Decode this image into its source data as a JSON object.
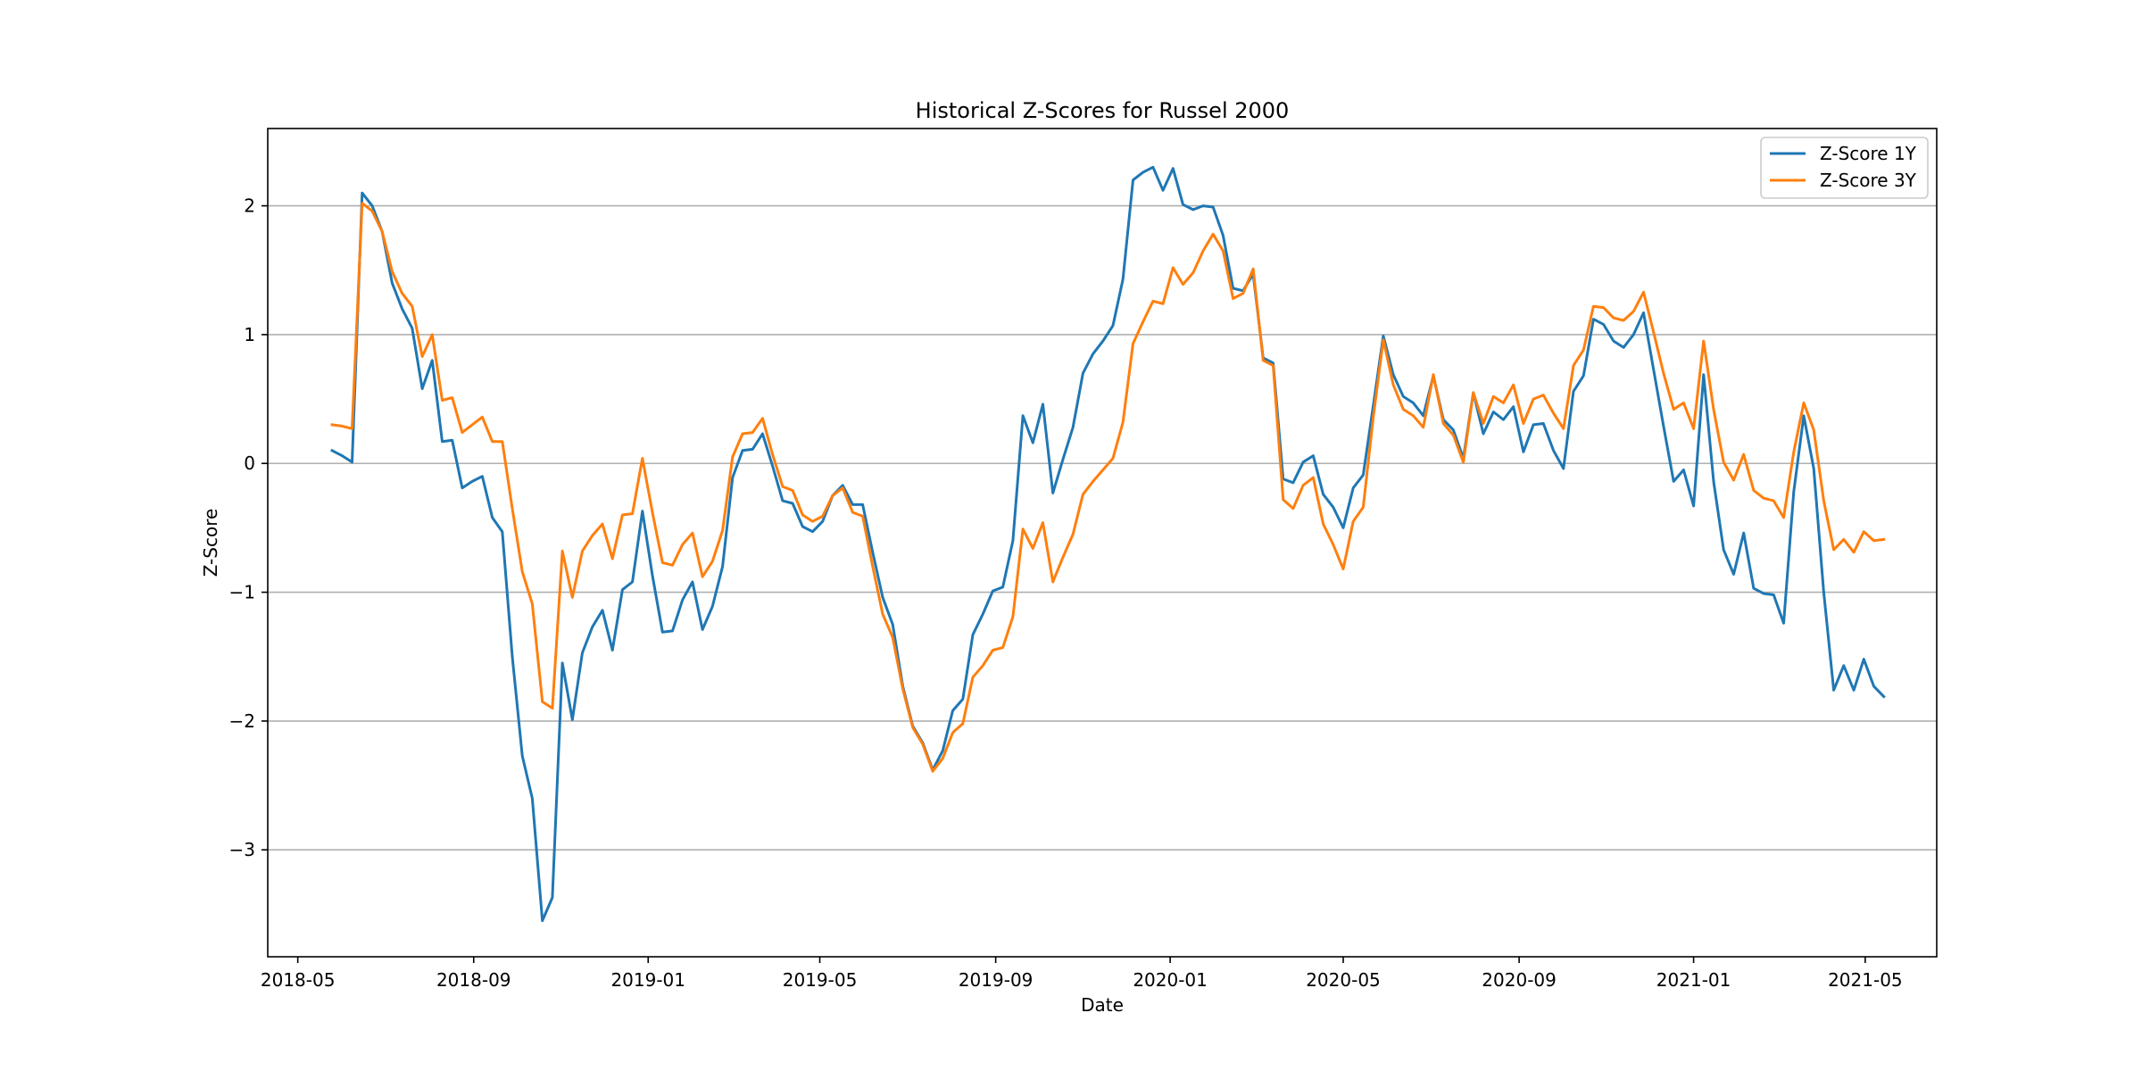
{
  "chart_data": {
    "type": "line",
    "title": "Historical Z-Scores for Russel 2000",
    "xlabel": "Date",
    "ylabel": "Z-Score",
    "x_axis_type": "date",
    "xlim": [
      "2018-04-10",
      "2021-06-20"
    ],
    "ylim": [
      -3.83,
      2.6
    ],
    "grid": "horizontal",
    "legend_position": "top-right",
    "x_ticks": [
      {
        "date": "2018-05-01",
        "label": "2018-05"
      },
      {
        "date": "2018-09-01",
        "label": "2018-09"
      },
      {
        "date": "2019-01-01",
        "label": "2019-01"
      },
      {
        "date": "2019-05-01",
        "label": "2019-05"
      },
      {
        "date": "2019-09-01",
        "label": "2019-09"
      },
      {
        "date": "2020-01-01",
        "label": "2020-01"
      },
      {
        "date": "2020-05-01",
        "label": "2020-05"
      },
      {
        "date": "2020-09-01",
        "label": "2020-09"
      },
      {
        "date": "2021-01-01",
        "label": "2021-01"
      },
      {
        "date": "2021-05-01",
        "label": "2021-05"
      }
    ],
    "y_ticks": [
      {
        "value": -3,
        "label": "−3"
      },
      {
        "value": -2,
        "label": "−2"
      },
      {
        "value": -1,
        "label": "−1"
      },
      {
        "value": 0,
        "label": "0"
      },
      {
        "value": 1,
        "label": "1"
      },
      {
        "value": 2,
        "label": "2"
      }
    ],
    "x": [
      "2018-05-25",
      "2018-06-01",
      "2018-06-08",
      "2018-06-15",
      "2018-06-22",
      "2018-06-29",
      "2018-07-06",
      "2018-07-13",
      "2018-07-20",
      "2018-07-27",
      "2018-08-03",
      "2018-08-10",
      "2018-08-17",
      "2018-08-24",
      "2018-08-31",
      "2018-09-07",
      "2018-09-14",
      "2018-09-21",
      "2018-09-28",
      "2018-10-05",
      "2018-10-12",
      "2018-10-19",
      "2018-10-26",
      "2018-11-02",
      "2018-11-09",
      "2018-11-16",
      "2018-11-23",
      "2018-11-30",
      "2018-12-07",
      "2018-12-14",
      "2018-12-21",
      "2018-12-28",
      "2019-01-04",
      "2019-01-11",
      "2019-01-18",
      "2019-01-25",
      "2019-02-01",
      "2019-02-08",
      "2019-02-15",
      "2019-02-22",
      "2019-03-01",
      "2019-03-08",
      "2019-03-15",
      "2019-03-22",
      "2019-03-29",
      "2019-04-05",
      "2019-04-12",
      "2019-04-19",
      "2019-04-26",
      "2019-05-03",
      "2019-05-10",
      "2019-05-17",
      "2019-05-24",
      "2019-05-31",
      "2019-06-07",
      "2019-06-14",
      "2019-06-21",
      "2019-06-28",
      "2019-07-05",
      "2019-07-12",
      "2019-07-19",
      "2019-07-26",
      "2019-08-02",
      "2019-08-09",
      "2019-08-16",
      "2019-08-23",
      "2019-08-30",
      "2019-09-06",
      "2019-09-13",
      "2019-09-20",
      "2019-09-27",
      "2019-10-04",
      "2019-10-11",
      "2019-10-18",
      "2019-10-25",
      "2019-11-01",
      "2019-11-08",
      "2019-11-15",
      "2019-11-22",
      "2019-11-29",
      "2019-12-06",
      "2019-12-13",
      "2019-12-20",
      "2019-12-27",
      "2020-01-03",
      "2020-01-10",
      "2020-01-17",
      "2020-01-24",
      "2020-01-31",
      "2020-02-07",
      "2020-02-14",
      "2020-02-21",
      "2020-02-28",
      "2020-03-06",
      "2020-03-13",
      "2020-03-20",
      "2020-03-27",
      "2020-04-03",
      "2020-04-10",
      "2020-04-17",
      "2020-04-24",
      "2020-05-01",
      "2020-05-08",
      "2020-05-15",
      "2020-05-22",
      "2020-05-29",
      "2020-06-05",
      "2020-06-12",
      "2020-06-19",
      "2020-06-26",
      "2020-07-03",
      "2020-07-10",
      "2020-07-17",
      "2020-07-24",
      "2020-07-31",
      "2020-08-07",
      "2020-08-14",
      "2020-08-21",
      "2020-08-28",
      "2020-09-04",
      "2020-09-11",
      "2020-09-18",
      "2020-09-25",
      "2020-10-02",
      "2020-10-09",
      "2020-10-16",
      "2020-10-23",
      "2020-10-30",
      "2020-11-06",
      "2020-11-13",
      "2020-11-20",
      "2020-11-27",
      "2020-12-04",
      "2020-12-11",
      "2020-12-18",
      "2020-12-25",
      "2021-01-01",
      "2021-01-08",
      "2021-01-15",
      "2021-01-22",
      "2021-01-29",
      "2021-02-05",
      "2021-02-12",
      "2021-02-19",
      "2021-02-26",
      "2021-03-05",
      "2021-03-12",
      "2021-03-19",
      "2021-03-26",
      "2021-04-02",
      "2021-04-09",
      "2021-04-16",
      "2021-04-23",
      "2021-04-30",
      "2021-05-07",
      "2021-05-14"
    ],
    "series": [
      {
        "name": "Z-Score 1Y",
        "color": "#1f77b4",
        "values": [
          0.1,
          0.06,
          0.01,
          2.1,
          2.0,
          1.8,
          1.4,
          1.2,
          1.05,
          0.58,
          0.8,
          0.17,
          0.18,
          -0.19,
          -0.14,
          -0.1,
          -0.42,
          -0.53,
          -1.5,
          -2.27,
          -2.6,
          -3.55,
          -3.37,
          -1.55,
          -1.99,
          -1.47,
          -1.27,
          -1.14,
          -1.45,
          -0.98,
          -0.92,
          -0.37,
          -0.87,
          -1.31,
          -1.3,
          -1.06,
          -0.92,
          -1.29,
          -1.11,
          -0.8,
          -0.11,
          0.1,
          0.11,
          0.23,
          -0.02,
          -0.29,
          -0.31,
          -0.49,
          -0.53,
          -0.45,
          -0.25,
          -0.17,
          -0.32,
          -0.32,
          -0.69,
          -1.04,
          -1.25,
          -1.73,
          -2.04,
          -2.17,
          -2.38,
          -2.23,
          -1.92,
          -1.83,
          -1.33,
          -1.17,
          -0.99,
          -0.96,
          -0.6,
          0.37,
          0.16,
          0.46,
          -0.23,
          0.03,
          0.28,
          0.7,
          0.85,
          0.95,
          1.07,
          1.43,
          2.2,
          2.26,
          2.3,
          2.12,
          2.29,
          2.01,
          1.97,
          2.0,
          1.99,
          1.77,
          1.36,
          1.34,
          1.47,
          0.82,
          0.78,
          -0.12,
          -0.15,
          0.01,
          0.06,
          -0.24,
          -0.34,
          -0.5,
          -0.19,
          -0.09,
          0.45,
          0.99,
          0.69,
          0.52,
          0.47,
          0.37,
          0.68,
          0.34,
          0.26,
          0.04,
          0.55,
          0.23,
          0.4,
          0.34,
          0.44,
          0.09,
          0.3,
          0.31,
          0.1,
          -0.04,
          0.56,
          0.68,
          1.12,
          1.08,
          0.95,
          0.9,
          1.0,
          1.17,
          0.73,
          0.29,
          -0.14,
          -0.05,
          -0.33,
          0.69,
          -0.14,
          -0.67,
          -0.86,
          -0.54,
          -0.97,
          -1.01,
          -1.02,
          -1.24,
          -0.22,
          0.37,
          -0.04,
          -1.0,
          -1.76,
          -1.57,
          -1.76,
          -1.52,
          -1.73,
          -1.81
        ]
      },
      {
        "name": "Z-Score 3Y",
        "color": "#ff7f0e",
        "values": [
          0.3,
          0.29,
          0.27,
          2.02,
          1.96,
          1.8,
          1.49,
          1.32,
          1.22,
          0.83,
          1.0,
          0.49,
          0.51,
          0.24,
          0.3,
          0.36,
          0.17,
          0.17,
          -0.35,
          -0.84,
          -1.09,
          -1.85,
          -1.9,
          -0.68,
          -1.04,
          -0.68,
          -0.56,
          -0.47,
          -0.74,
          -0.4,
          -0.39,
          0.04,
          -0.38,
          -0.77,
          -0.79,
          -0.63,
          -0.54,
          -0.88,
          -0.76,
          -0.52,
          0.05,
          0.23,
          0.24,
          0.35,
          0.07,
          -0.18,
          -0.21,
          -0.4,
          -0.45,
          -0.41,
          -0.25,
          -0.19,
          -0.38,
          -0.41,
          -0.8,
          -1.17,
          -1.35,
          -1.75,
          -2.05,
          -2.18,
          -2.39,
          -2.29,
          -2.09,
          -2.02,
          -1.66,
          -1.57,
          -1.45,
          -1.43,
          -1.19,
          -0.51,
          -0.66,
          -0.46,
          -0.92,
          -0.73,
          -0.55,
          -0.24,
          -0.14,
          -0.05,
          0.04,
          0.32,
          0.93,
          1.1,
          1.26,
          1.24,
          1.52,
          1.39,
          1.48,
          1.65,
          1.78,
          1.65,
          1.28,
          1.32,
          1.51,
          0.8,
          0.76,
          -0.28,
          -0.35,
          -0.17,
          -0.11,
          -0.47,
          -0.63,
          -0.82,
          -0.45,
          -0.34,
          0.36,
          0.96,
          0.61,
          0.42,
          0.37,
          0.28,
          0.69,
          0.31,
          0.22,
          0.01,
          0.55,
          0.31,
          0.52,
          0.47,
          0.61,
          0.31,
          0.5,
          0.53,
          0.39,
          0.27,
          0.76,
          0.88,
          1.22,
          1.21,
          1.13,
          1.11,
          1.18,
          1.33,
          1.02,
          0.7,
          0.42,
          0.47,
          0.27,
          0.95,
          0.42,
          0.01,
          -0.13,
          0.07,
          -0.21,
          -0.27,
          -0.29,
          -0.42,
          0.09,
          0.47,
          0.26,
          -0.29,
          -0.67,
          -0.59,
          -0.69,
          -0.53,
          -0.6,
          -0.59
        ]
      }
    ]
  }
}
